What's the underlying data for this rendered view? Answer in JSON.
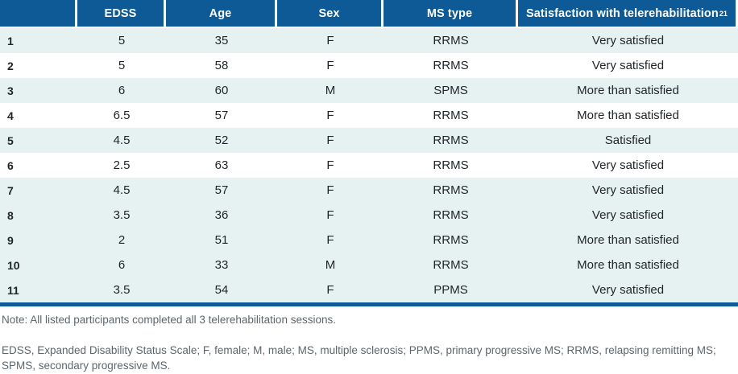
{
  "colors": {
    "header_bg": "#0e5a96",
    "row_shade": "#e6f2f2",
    "bottom_rule": "#0e5a96",
    "header_text": "#ffffff",
    "body_text": "#1f2428",
    "note_text": "#5c666e"
  },
  "table": {
    "header": {
      "col0": "",
      "col1": "EDSS",
      "col2": "Age",
      "col3": "Sex",
      "col4": "MS type",
      "col5": "Satisfaction with telerehabilitation",
      "col5_superscript": "21"
    },
    "rows": [
      {
        "id": "1",
        "edss": "5",
        "age": "35",
        "sex": "F",
        "ms_type": "RRMS",
        "satisfaction": "Very satisfied"
      },
      {
        "id": "2",
        "edss": "5",
        "age": "58",
        "sex": "F",
        "ms_type": "RRMS",
        "satisfaction": "Very satisfied"
      },
      {
        "id": "3",
        "edss": "6",
        "age": "60",
        "sex": "M",
        "ms_type": "SPMS",
        "satisfaction": "More than satisfied"
      },
      {
        "id": "4",
        "edss": "6.5",
        "age": "57",
        "sex": "F",
        "ms_type": "RRMS",
        "satisfaction": "More than satisfied"
      },
      {
        "id": "5",
        "edss": "4.5",
        "age": "52",
        "sex": "F",
        "ms_type": "RRMS",
        "satisfaction": "Satisfied"
      },
      {
        "id": "6",
        "edss": "2.5",
        "age": "63",
        "sex": "F",
        "ms_type": "RRMS",
        "satisfaction": "Very satisfied"
      },
      {
        "id": "7",
        "edss": "4.5",
        "age": "57",
        "sex": "F",
        "ms_type": "RRMS",
        "satisfaction": "Very satisfied"
      },
      {
        "id": "8",
        "edss": "3.5",
        "age": "36",
        "sex": "F",
        "ms_type": "RRMS",
        "satisfaction": "Very satisfied"
      },
      {
        "id": "9",
        "edss": "2",
        "age": "51",
        "sex": "F",
        "ms_type": "RRMS",
        "satisfaction": "More than satisfied"
      },
      {
        "id": "10",
        "edss": "6",
        "age": "33",
        "sex": "M",
        "ms_type": "RRMS",
        "satisfaction": "More than satisfied"
      },
      {
        "id": "11",
        "edss": "3.5",
        "age": "54",
        "sex": "F",
        "ms_type": "PPMS",
        "satisfaction": "Very satisfied"
      }
    ]
  },
  "notes": {
    "note": "Note: All listed participants completed all 3 telerehabilitation sessions.",
    "abbreviations": "EDSS, Expanded Disability Status Scale; F, female; M, male; MS, multiple sclerosis; PPMS, primary progressive MS; RRMS, relapsing remitting MS; SPMS, secondary progressive MS."
  }
}
